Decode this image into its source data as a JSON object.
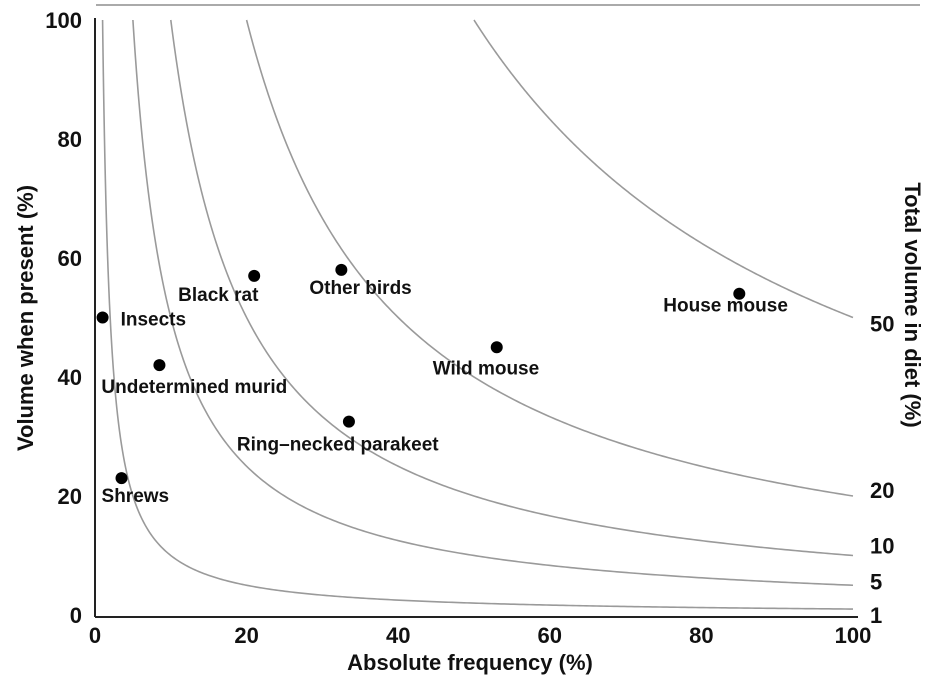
{
  "chart_data": {
    "type": "scatter",
    "xlabel": "Absolute frequency (%)",
    "ylabel": "Volume when present (%)",
    "y2label": "Total volume in diet (%)",
    "xlim": [
      0,
      100
    ],
    "ylim": [
      0,
      100
    ],
    "x_ticks": [
      "0",
      "20",
      "40",
      "60",
      "80",
      "100"
    ],
    "y_ticks": [
      "0",
      "20",
      "40",
      "60",
      "80",
      "100"
    ],
    "isolines": [
      {
        "total": 1,
        "label": "1"
      },
      {
        "total": 5,
        "label": "5"
      },
      {
        "total": 10,
        "label": "10"
      },
      {
        "total": 20,
        "label": "20"
      },
      {
        "total": 50,
        "label": "50"
      }
    ],
    "points": [
      {
        "name": "Insects",
        "x": 1,
        "y": 50
      },
      {
        "name": "Shrews",
        "x": 3.5,
        "y": 23
      },
      {
        "name": "Undetermined murid",
        "x": 8.5,
        "y": 42
      },
      {
        "name": "Black rat",
        "x": 21,
        "y": 57
      },
      {
        "name": "Other birds",
        "x": 32.5,
        "y": 58
      },
      {
        "name": "Ring–necked parakeet",
        "x": 33.5,
        "y": 32.5
      },
      {
        "name": "Wild mouse",
        "x": 53,
        "y": 45
      },
      {
        "name": "House mouse",
        "x": 85,
        "y": 54
      }
    ],
    "colors": {
      "points": "#000000",
      "isolines": "#9a9a9a",
      "axes": "#222222"
    }
  }
}
